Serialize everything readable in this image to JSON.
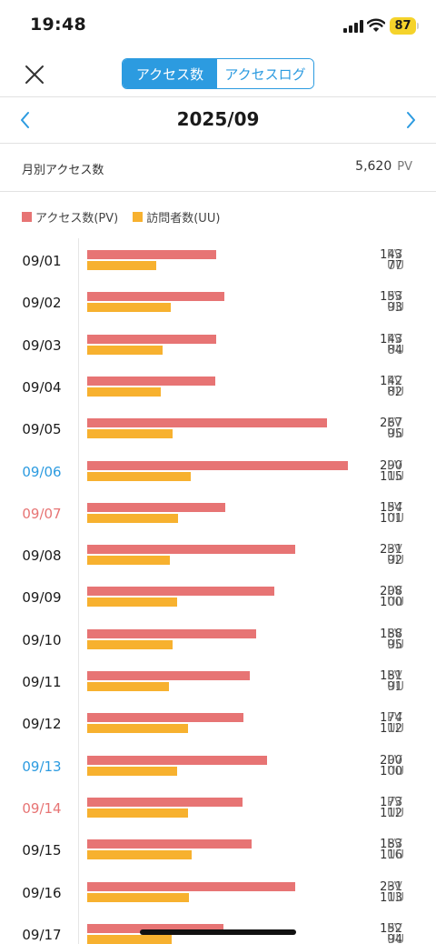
{
  "status": {
    "time": "19:48",
    "battery": "87"
  },
  "nav": {
    "tabs": [
      {
        "label": "アクセス数",
        "active": true
      },
      {
        "label": "アクセスログ",
        "active": false
      }
    ]
  },
  "month": {
    "title": "2025/09"
  },
  "summary": {
    "label": "月別アクセス数",
    "value": "5,620",
    "unit": "PV"
  },
  "colors": {
    "accent": "#2c9be0",
    "pv": "#e77474",
    "uu": "#f7b12f",
    "saturday": "#2c9be0",
    "sunday": "#e77474"
  },
  "chart_data": {
    "type": "bar",
    "orientation": "horizontal",
    "legend": [
      {
        "name": "アクセス数(PV)",
        "color": "#e77474"
      },
      {
        "name": "訪問者数(UU)",
        "color": "#f7b12f"
      }
    ],
    "units": {
      "pv": "PV",
      "uu": "UU"
    },
    "xlim": [
      0,
      290
    ],
    "categories": [
      "09/01",
      "09/02",
      "09/03",
      "09/04",
      "09/05",
      "09/06",
      "09/07",
      "09/08",
      "09/09",
      "09/10",
      "09/11",
      "09/12",
      "09/13",
      "09/14",
      "09/15",
      "09/16",
      "09/17"
    ],
    "series": [
      {
        "name": "アクセス数(PV)",
        "values": [
          143,
          153,
          143,
          142,
          267,
          290,
          154,
          231,
          208,
          188,
          181,
          174,
          200,
          173,
          183,
          231,
          152
        ]
      },
      {
        "name": "訪問者数(UU)",
        "values": [
          77,
          93,
          84,
          82,
          95,
          115,
          101,
          92,
          100,
          95,
          91,
          112,
          100,
          112,
          116,
          113,
          94
        ]
      }
    ],
    "weekday_color": {
      "09/06": "saturday",
      "09/07": "sunday",
      "09/13": "saturday",
      "09/14": "sunday"
    }
  }
}
